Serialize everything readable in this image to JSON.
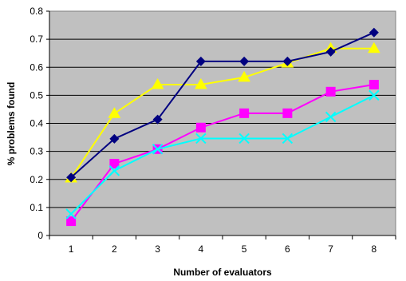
{
  "chart_data": {
    "type": "line",
    "title": "",
    "xlabel": "Number of evaluators",
    "ylabel": "% problems found",
    "x": [
      1,
      2,
      3,
      4,
      5,
      6,
      7,
      8
    ],
    "ylim": [
      0,
      0.8
    ],
    "yticks": [
      "0",
      "0.1",
      "0.2",
      "0.3",
      "0.4",
      "0.5",
      "0.6",
      "0.7",
      "0.8"
    ],
    "xticks": [
      "1",
      "2",
      "3",
      "4",
      "5",
      "6",
      "7",
      "8"
    ],
    "grid": "horizontal",
    "plot_background": "#c0c0c0",
    "legend": "none",
    "series": [
      {
        "values": [
          0.205,
          0.435,
          0.538,
          0.538,
          0.564,
          0.615,
          0.667,
          0.667
        ],
        "color": "#ffff00",
        "marker": "triangle"
      },
      {
        "values": [
          0.051,
          0.256,
          0.308,
          0.385,
          0.436,
          0.436,
          0.513,
          0.538
        ],
        "color": "#ff00ff",
        "marker": "square"
      },
      {
        "values": [
          0.077,
          0.231,
          0.308,
          0.346,
          0.346,
          0.346,
          0.423,
          0.5
        ],
        "color": "#00ffff",
        "marker": "x"
      },
      {
        "values": [
          0.207,
          0.345,
          0.414,
          0.621,
          0.621,
          0.621,
          0.655,
          0.724
        ],
        "color": "#000080",
        "marker": "diamond"
      }
    ]
  }
}
